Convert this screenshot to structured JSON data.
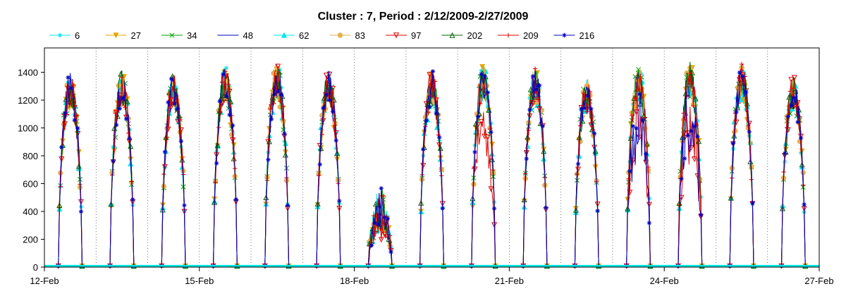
{
  "chart_data": {
    "type": "line",
    "title": "Cluster : 7, Period : 2/12/2009-2/27/2009",
    "xlabel": "",
    "ylabel": "",
    "x_tick_labels": [
      "12-Feb",
      "15-Feb",
      "18-Feb",
      "21-Feb",
      "24-Feb",
      "27-Feb"
    ],
    "y_tick_labels": [
      "0",
      "200",
      "400",
      "600",
      "800",
      "1000",
      "1200",
      "1400"
    ],
    "ylim": [
      0,
      1575
    ],
    "xlim_days": [
      12,
      27
    ],
    "grid": {
      "x_dotted_daily": true,
      "y": false
    },
    "legend_position": "top",
    "days": [
      "13-Feb",
      "14-Feb",
      "15-Feb",
      "16-Feb",
      "17-Feb",
      "18-Feb",
      "19-Feb",
      "20-Feb",
      "21-Feb",
      "22-Feb",
      "23-Feb",
      "24-Feb",
      "25-Feb",
      "26-Feb",
      "27-Feb"
    ],
    "daily_peak": [
      1400,
      1420,
      1390,
      1450,
      1470,
      1420,
      580,
      1420,
      1450,
      1440,
      1360,
      1460,
      1480,
      1470,
      1380
    ],
    "series": [
      {
        "name": "6",
        "color": "#00e5e5",
        "marker": "asterisk"
      },
      {
        "name": "27",
        "color": "#e5a500",
        "marker": "triangle-down"
      },
      {
        "name": "34",
        "color": "#00a000",
        "marker": "x"
      },
      {
        "name": "48",
        "color": "#0000c0",
        "marker": "none"
      },
      {
        "name": "62",
        "color": "#00e5e5",
        "marker": "triangle-up"
      },
      {
        "name": "83",
        "color": "#e5b050",
        "marker": "circle"
      },
      {
        "name": "97",
        "color": "#e00000",
        "marker": "triangle-down-open"
      },
      {
        "name": "202",
        "color": "#006000",
        "marker": "triangle-up-open"
      },
      {
        "name": "209",
        "color": "#e00000",
        "marker": "plus"
      },
      {
        "name": "216",
        "color": "#0000c0",
        "marker": "asterisk"
      }
    ]
  }
}
